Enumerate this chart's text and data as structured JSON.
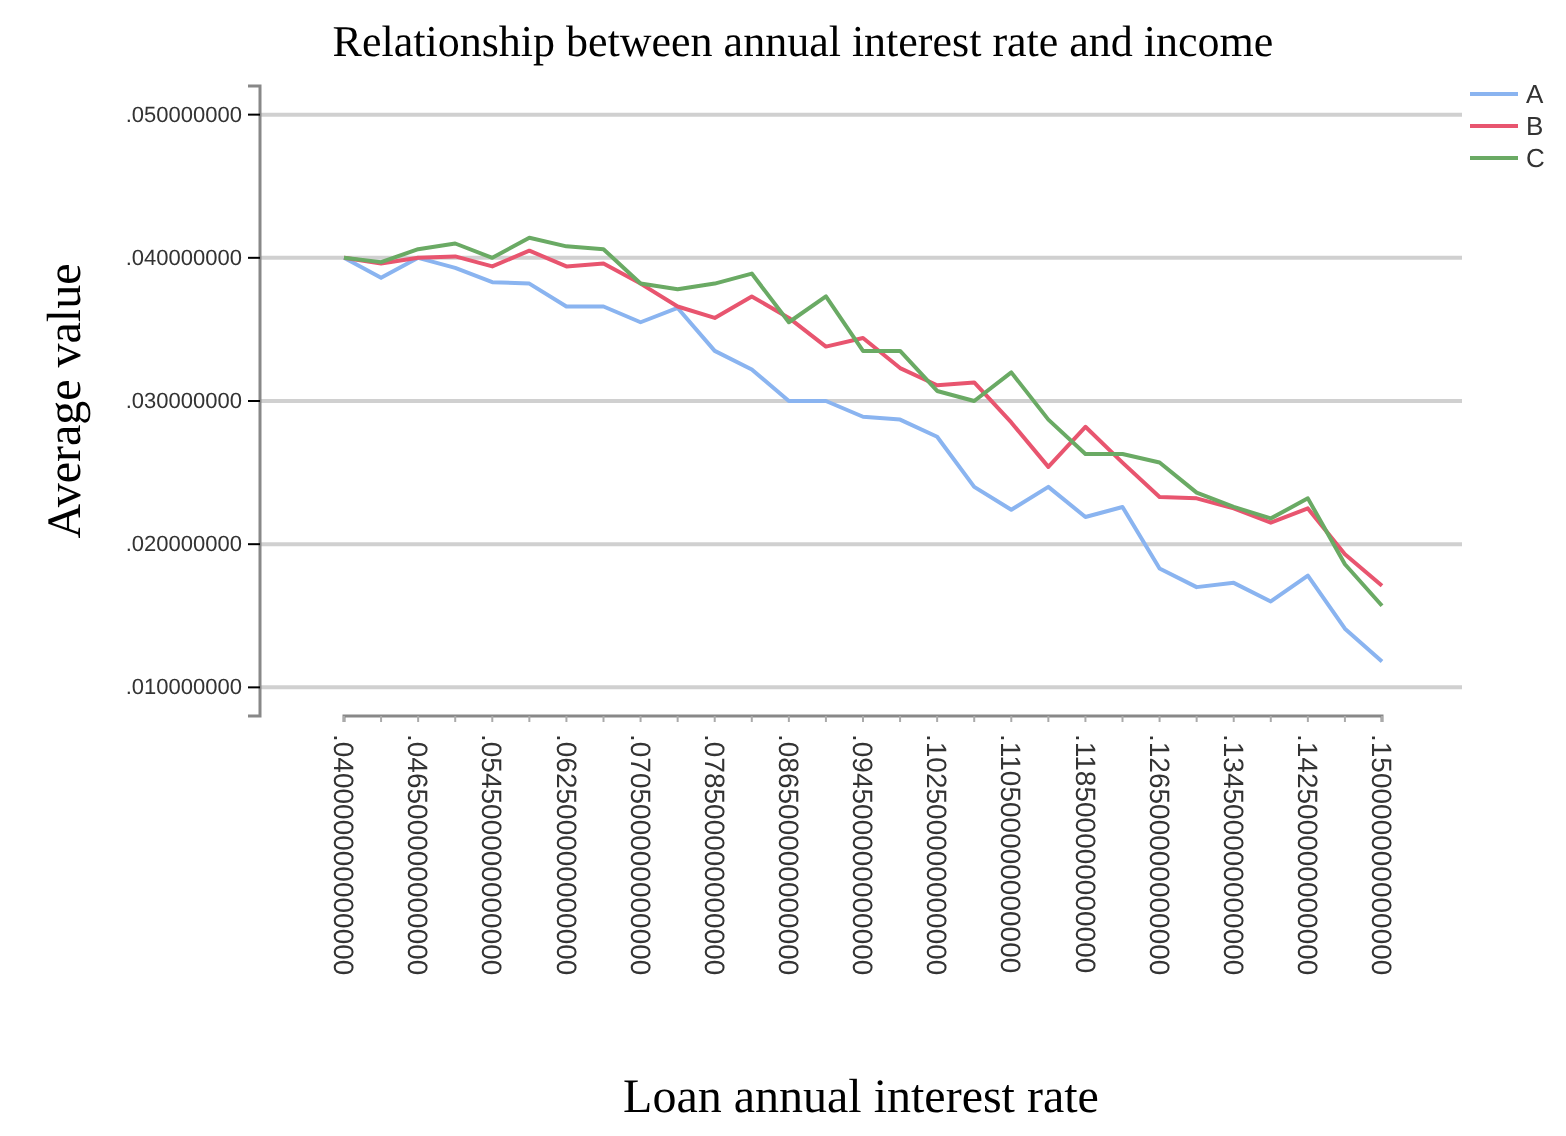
{
  "chart_data": {
    "type": "line",
    "title": "Relationship between annual interest rate and income",
    "xlabel": "Loan annual interest rate",
    "ylabel": "Average value",
    "categories": [
      ".040000000000000",
      null,
      ".046500000000000",
      null,
      ".054500000000000",
      null,
      ".062500000000000",
      null,
      ".070500000000000",
      null,
      ".078500000000000",
      null,
      ".086500000000000",
      null,
      ".094500000000000",
      null,
      ".102500000000000",
      null,
      ".110500000000000",
      null,
      ".118500000000000",
      null,
      ".126500000000000",
      null,
      ".134500000000000",
      null,
      ".142500000000000",
      null,
      ".150000000000000"
    ],
    "series": [
      {
        "name": "A",
        "color": "#8ab4f0",
        "values": [
          0.04,
          0.0386,
          0.04,
          0.0393,
          0.0383,
          0.0382,
          0.0366,
          0.0366,
          0.0355,
          0.0365,
          0.0335,
          0.0322,
          0.03,
          0.03,
          0.0289,
          0.0287,
          0.0275,
          0.024,
          0.0224,
          0.024,
          0.0219,
          0.0226,
          0.0183,
          0.017,
          0.0173,
          0.016,
          0.0178,
          0.0141,
          0.0118
        ]
      },
      {
        "name": "B",
        "color": "#e8556f",
        "values": [
          0.04,
          0.0396,
          0.04,
          0.0401,
          0.0394,
          0.0405,
          0.0394,
          0.0396,
          0.0382,
          0.0366,
          0.0358,
          0.0373,
          0.0358,
          0.0338,
          0.0344,
          0.0323,
          0.0311,
          0.0313,
          0.0285,
          0.0254,
          0.0282,
          0.0257,
          0.0233,
          0.0232,
          0.0225,
          0.0215,
          0.0225,
          0.0193,
          0.0171
        ]
      },
      {
        "name": "C",
        "color": "#6aaa64",
        "values": [
          0.04,
          0.0397,
          0.0406,
          0.041,
          0.04,
          0.0414,
          0.0408,
          0.0406,
          0.0382,
          0.0378,
          0.0382,
          0.0389,
          0.0355,
          0.0373,
          0.0335,
          0.0335,
          0.0307,
          0.03,
          0.032,
          0.0287,
          0.0263,
          0.0263,
          0.0257,
          0.0236,
          0.0226,
          0.0218,
          0.0232,
          0.0186,
          0.0157
        ]
      }
    ],
    "ylim": [
      0.008,
      0.052
    ],
    "yticks": [
      {
        "value": 0.01,
        "label": ".010000000"
      },
      {
        "value": 0.02,
        "label": ".020000000"
      },
      {
        "value": 0.03,
        "label": ".030000000"
      },
      {
        "value": 0.04,
        "label": ".040000000"
      },
      {
        "value": 0.05,
        "label": ".050000000"
      }
    ],
    "grid": "y",
    "legend": "top right",
    "marker": "none",
    "line_style": "solid"
  }
}
